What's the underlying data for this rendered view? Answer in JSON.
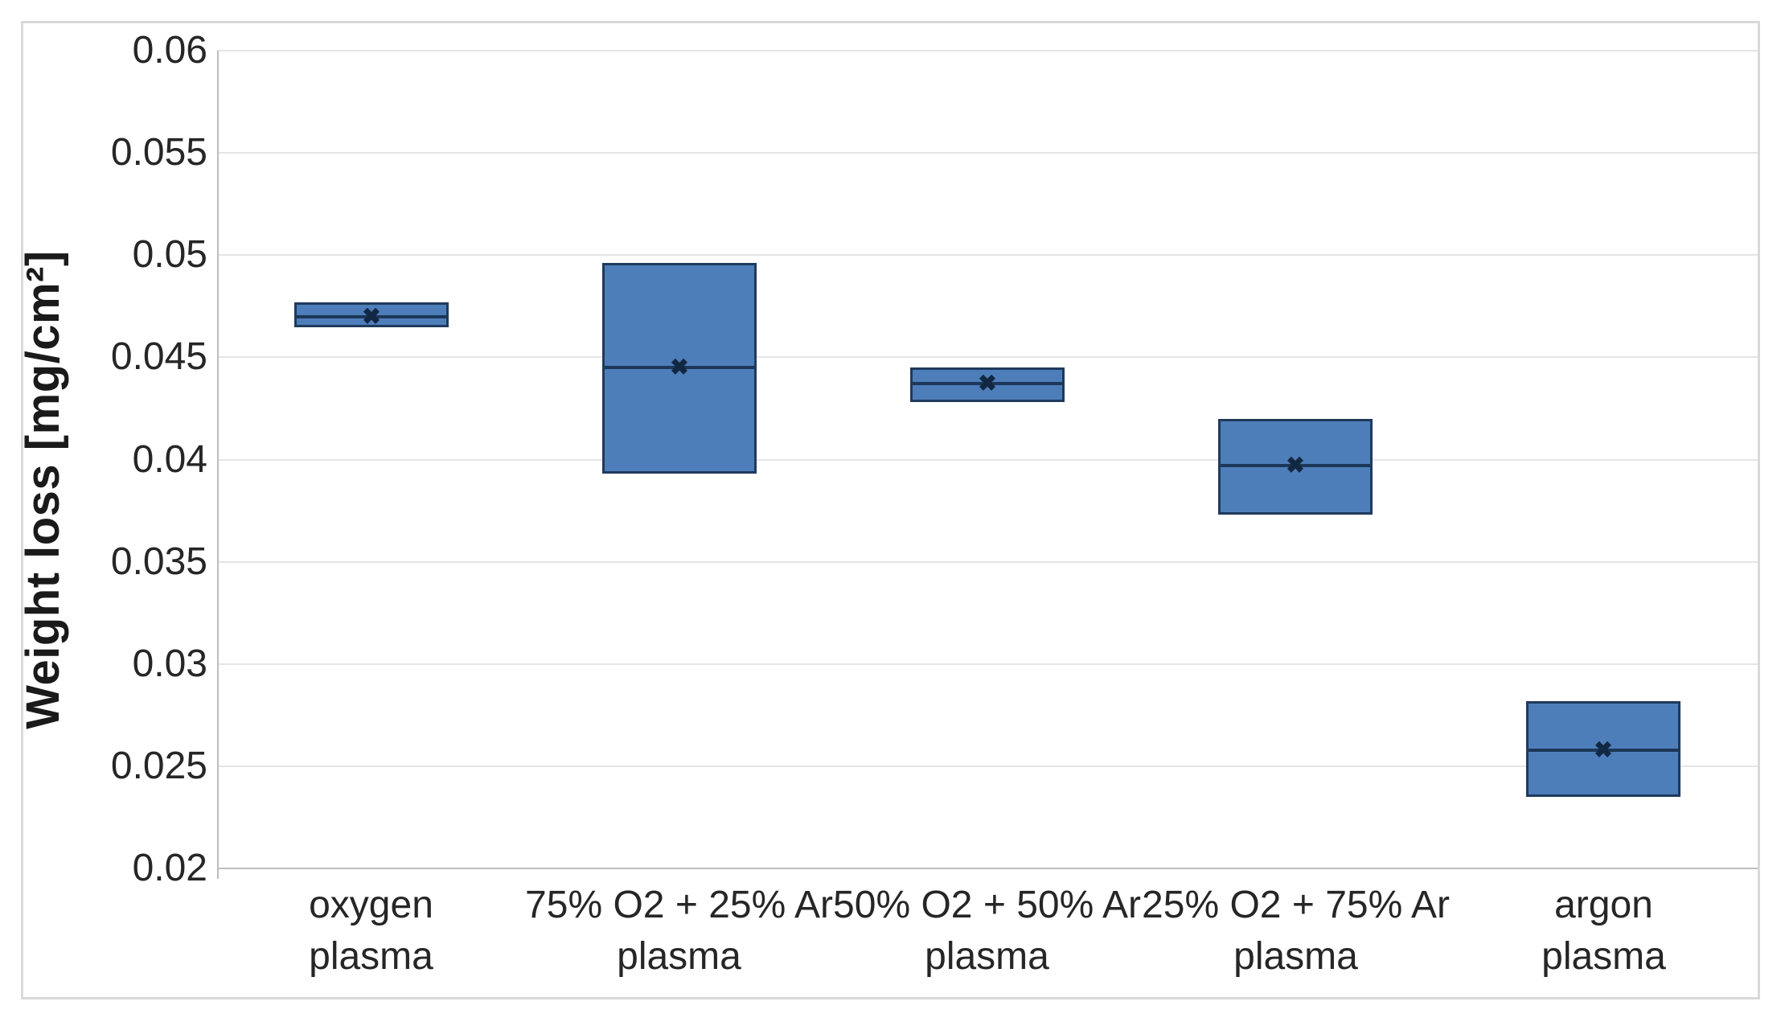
{
  "chart_data": {
    "type": "box",
    "title": "",
    "xlabel": "",
    "ylabel": "Weight loss [mg/cm²]",
    "ylim": [
      0.02,
      0.06
    ],
    "ytick_step": 0.005,
    "yticks": [
      0.02,
      0.025,
      0.03,
      0.035,
      0.04,
      0.045,
      0.05,
      0.055,
      0.06
    ],
    "ytick_labels": [
      "0.02",
      "0.025",
      "0.03",
      "0.035",
      "0.04",
      "0.045",
      "0.05",
      "0.055",
      "0.06"
    ],
    "grid": "horizontal",
    "legend": "none",
    "categories": [
      "oxygen plasma",
      "75% O2 + 25% Ar plasma",
      "50% O2 + 50% Ar plasma",
      "25% O2 + 75% Ar plasma",
      "argon plasma"
    ],
    "category_label_lines": [
      [
        "oxygen",
        "plasma"
      ],
      [
        "75% O2 + 25% Ar",
        "plasma"
      ],
      [
        "50% O2 + 50% Ar",
        "plasma"
      ],
      [
        "25% O2 + 75% Ar",
        "plasma"
      ],
      [
        "argon",
        "plasma"
      ]
    ],
    "boxes": [
      {
        "category": "oxygen plasma",
        "q1": 0.0465,
        "median": 0.047,
        "q3": 0.0477,
        "mean": 0.047
      },
      {
        "category": "75% O2 + 25% Ar plasma",
        "q1": 0.0393,
        "median": 0.0445,
        "q3": 0.0496,
        "mean": 0.0445
      },
      {
        "category": "50% O2 + 50% Ar plasma",
        "q1": 0.0428,
        "median": 0.0437,
        "q3": 0.0445,
        "mean": 0.0437
      },
      {
        "category": "25% O2 + 75% Ar plasma",
        "q1": 0.0373,
        "median": 0.0397,
        "q3": 0.042,
        "mean": 0.0397
      },
      {
        "category": "argon plasma",
        "q1": 0.0235,
        "median": 0.0258,
        "q3": 0.0282,
        "mean": 0.0258
      }
    ],
    "colors": {
      "box_fill": "#4e7eba",
      "box_border": "#1f3a5c",
      "median_line": "#1c3757",
      "mean_marker": "#122741",
      "gridline": "#e5e5e5",
      "axis_line": "#bdbdbd",
      "figure_border": "#d9d9d9",
      "text": "#262626"
    }
  }
}
